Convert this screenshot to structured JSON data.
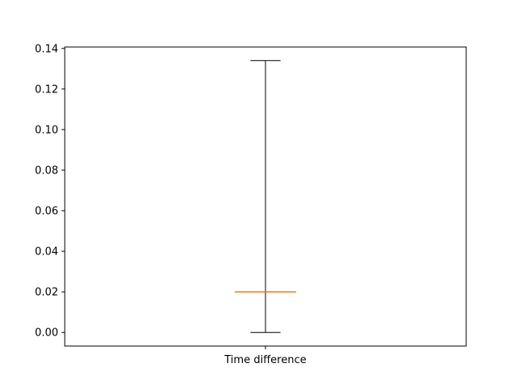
{
  "chart_data": {
    "type": "box",
    "categories": [
      "Time difference"
    ],
    "boxes": [
      {
        "category": "Time difference",
        "whisker_low": 0.0,
        "q1": 0.02,
        "median": 0.02,
        "q3": 0.02,
        "whisker_high": 0.134
      }
    ],
    "y_ticks": [
      0.0,
      0.02,
      0.04,
      0.06,
      0.08,
      0.1,
      0.12,
      0.14
    ],
    "y_tick_labels": [
      "0.00",
      "0.02",
      "0.04",
      "0.06",
      "0.08",
      "0.10",
      "0.12",
      "0.14"
    ],
    "ylim": [
      -0.0067,
      0.1407
    ],
    "title": "",
    "xlabel": "",
    "ylabel": "",
    "grid": false,
    "colors": {
      "box": "#000000",
      "whisker": "#000000",
      "median": "#ff7f0e",
      "axes": "#000000"
    }
  }
}
